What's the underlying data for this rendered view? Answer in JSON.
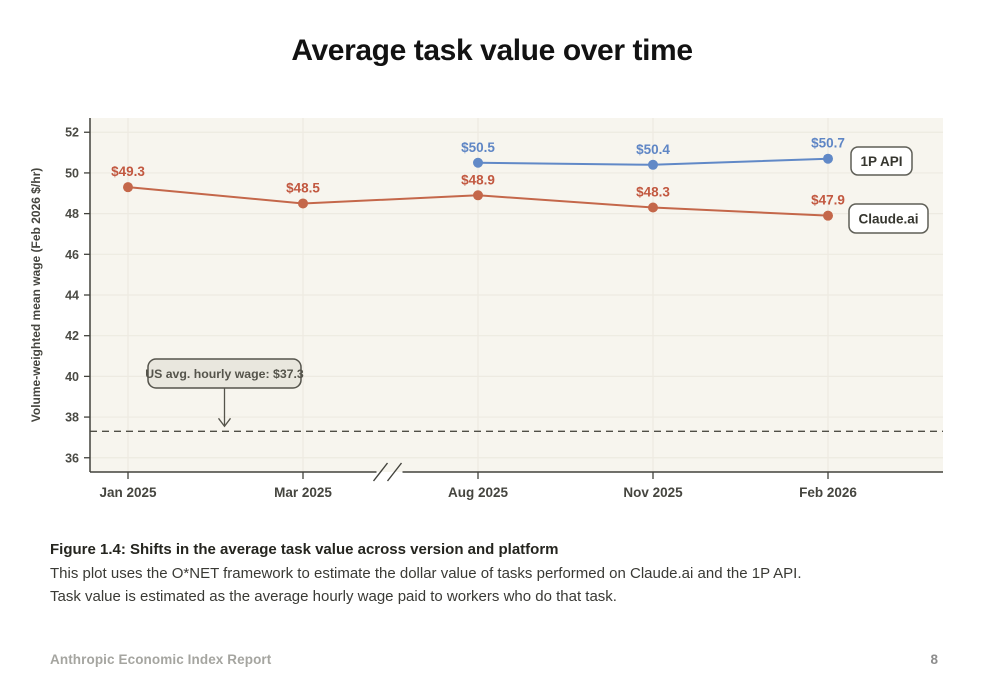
{
  "page": {
    "title": "Average task value over time",
    "footer_left": "Anthropic Economic Index Report",
    "page_number": "8"
  },
  "caption": {
    "bold": "Figure 1.4: Shifts in the average task value across version and platform",
    "line1": "This plot uses the O*NET framework to estimate the dollar value of tasks performed on Claude.ai and the 1P API.",
    "line2": "Task value is estimated as the average hourly wage paid to workers who do that task."
  },
  "chart_data": {
    "type": "line",
    "title": "Average task value over time",
    "xlabel": "",
    "ylabel": "Volume-weighted mean wage (Feb 2026 $/hr)",
    "categories": [
      "Jan 2025",
      "Mar 2025",
      "Aug 2025",
      "Nov 2025",
      "Feb 2026"
    ],
    "y_ticks": [
      36,
      38,
      40,
      42,
      44,
      46,
      48,
      50,
      52
    ],
    "ylim": [
      35.3,
      52.7
    ],
    "grid": true,
    "axis_break_after_category": "Mar 2025",
    "series": [
      {
        "name": "1P API",
        "color": "#6189c7",
        "label_color": "#5f86c5",
        "values": [
          null,
          null,
          50.5,
          50.4,
          50.7
        ],
        "point_labels": [
          null,
          null,
          "$50.5",
          "$50.4",
          "$50.7"
        ]
      },
      {
        "name": "Claude.ai",
        "color": "#c4674a",
        "label_color": "#c25840",
        "values": [
          49.3,
          48.5,
          48.9,
          48.3,
          47.9
        ],
        "point_labels": [
          "$49.3",
          "$48.5",
          "$48.9",
          "$48.3",
          "$47.9"
        ]
      }
    ],
    "reference_line": {
      "value": 37.3,
      "label": "US avg. hourly wage: $37.3"
    },
    "legend": [
      "1P API",
      "Claude.ai"
    ],
    "legend_position": "right-inside",
    "colors": {
      "plot_bg": "#f7f5ee",
      "grid": "#edeae1",
      "axis": "#42423c",
      "tick_text": "#4b4b45",
      "axis_label_text": "#45453f",
      "dashed_line": "#4f4e46",
      "annotation_bg": "#e9e7de",
      "annotation_border": "#55544c",
      "annotation_text": "#55544b",
      "legend_border": "#5f5f57",
      "legend_text": "#36362f"
    }
  }
}
